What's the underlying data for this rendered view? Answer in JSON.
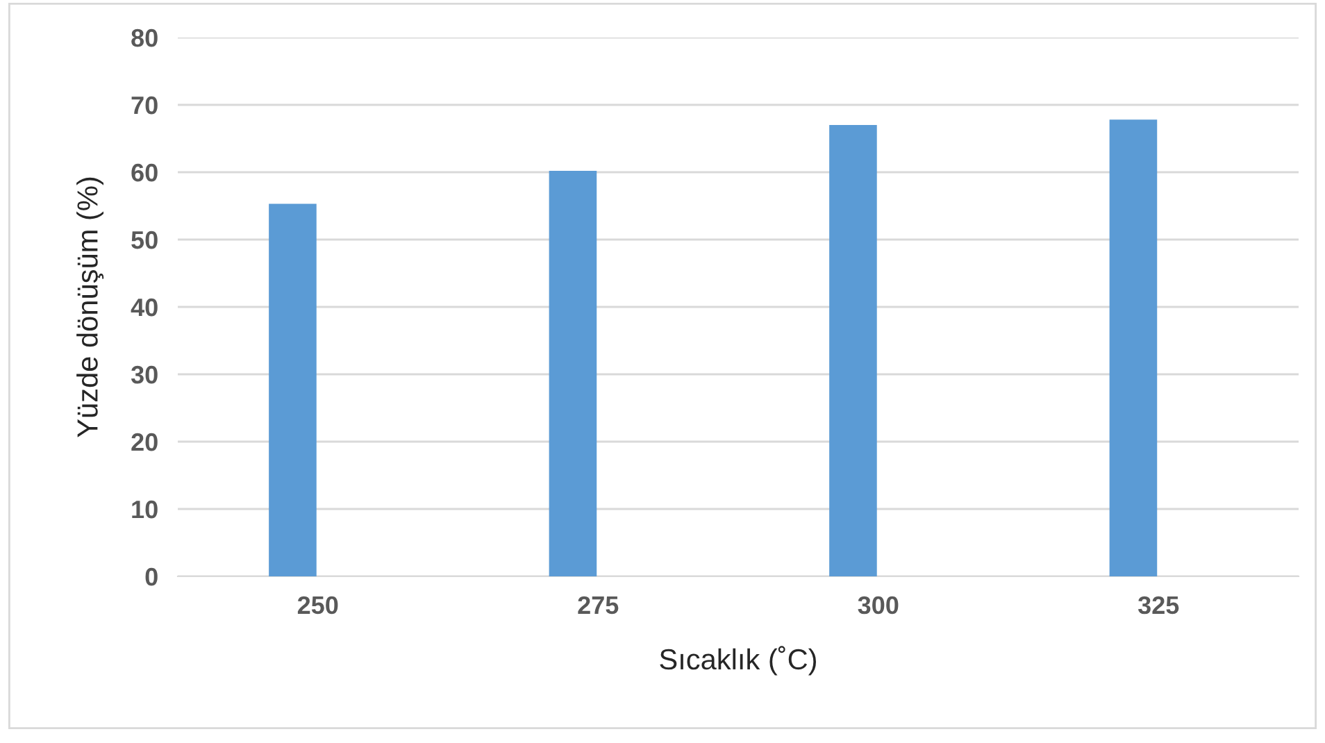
{
  "chart_data": {
    "type": "bar",
    "xlabel": "Sıcaklık (˚C)",
    "ylabel": "Yüzde dönüşüm (%)",
    "categories": [
      "250",
      "275",
      "300",
      "325"
    ],
    "values": [
      55.3,
      60.2,
      67.0,
      67.8
    ],
    "color": "#5b9bd5",
    "ylim": [
      0,
      80
    ],
    "yticks": [
      0,
      10,
      20,
      30,
      40,
      50,
      60,
      70,
      80
    ],
    "grid": "y"
  }
}
